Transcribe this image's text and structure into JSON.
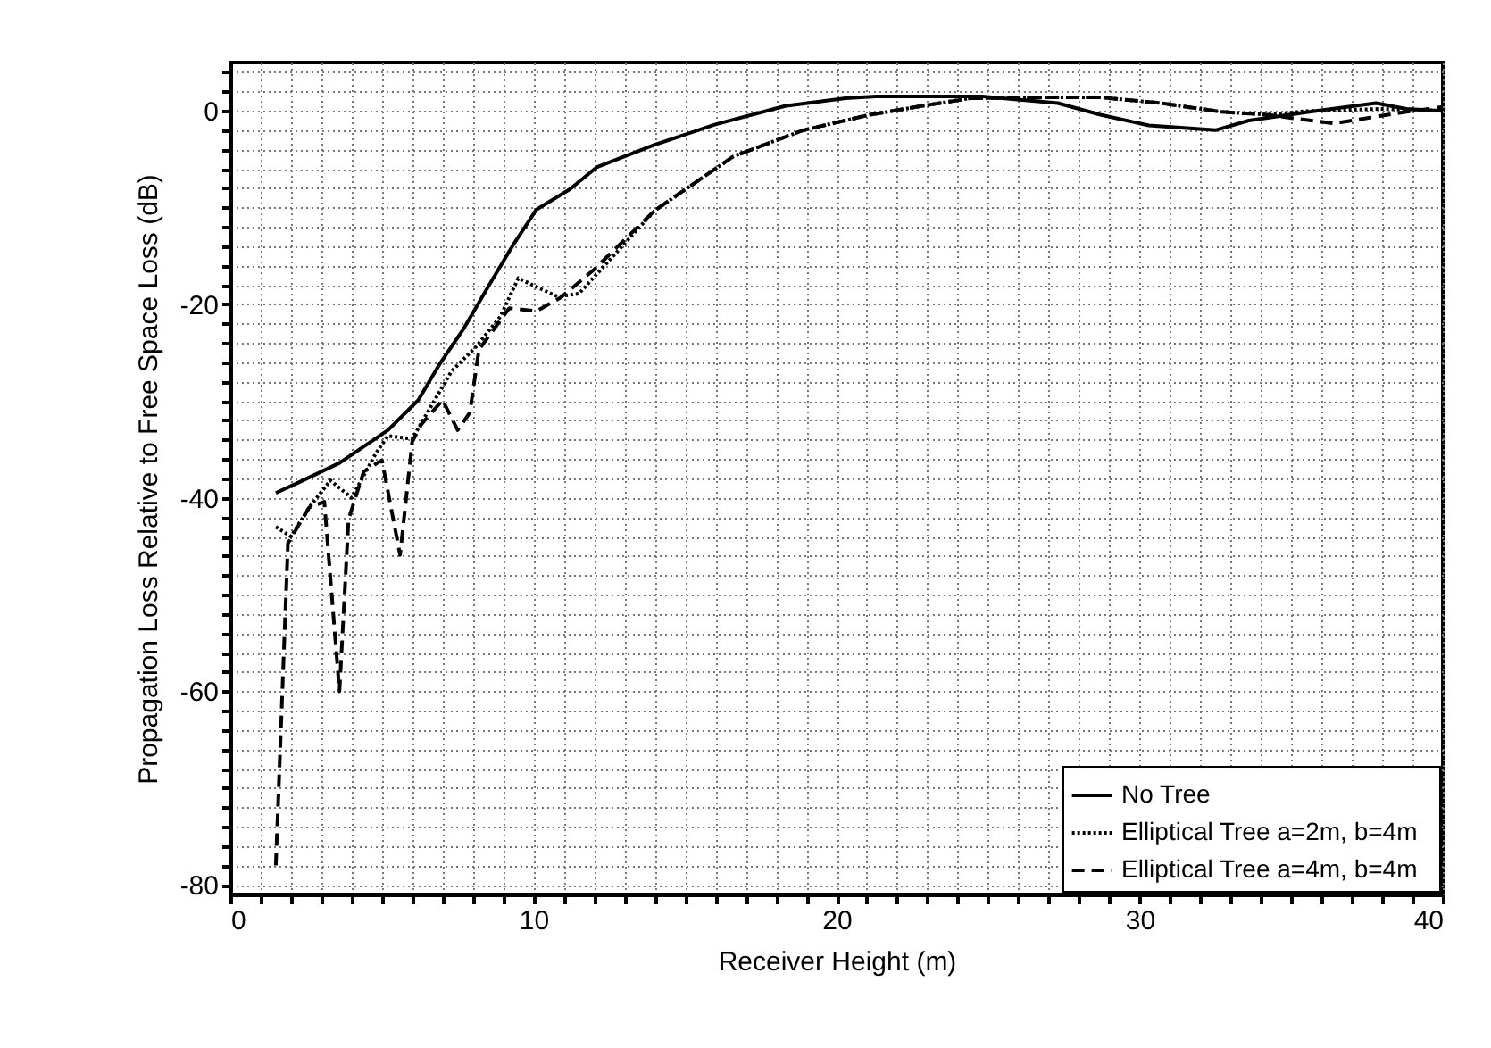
{
  "chart_data": {
    "type": "line",
    "xlabel": "Receiver Height (m)",
    "ylabel": "Propagation Loss Relative to Free Space Loss (dB)",
    "xlim": [
      0,
      40
    ],
    "ylim": [
      -81,
      5
    ],
    "xticks": [
      0,
      {
        "value": 1,
        "label": null
      },
      {
        "value": 2,
        "label": null
      },
      {
        "value": 3,
        "label": null
      },
      {
        "value": 4,
        "label": null
      },
      {
        "value": 5,
        "label": null
      },
      {
        "value": 6,
        "label": null
      },
      {
        "value": 7,
        "label": null
      },
      {
        "value": 8,
        "label": null
      },
      {
        "value": 9,
        "label": null
      },
      10,
      {
        "value": 11,
        "label": null
      },
      {
        "value": 12,
        "label": null
      },
      {
        "value": 13,
        "label": null
      },
      {
        "value": 14,
        "label": null
      },
      {
        "value": 15,
        "label": null
      },
      {
        "value": 16,
        "label": null
      },
      {
        "value": 17,
        "label": null
      },
      {
        "value": 18,
        "label": null
      },
      {
        "value": 19,
        "label": null
      },
      20,
      {
        "value": 21,
        "label": null
      },
      {
        "value": 22,
        "label": null
      },
      {
        "value": 23,
        "label": null
      },
      {
        "value": 24,
        "label": null
      },
      {
        "value": 25,
        "label": null
      },
      {
        "value": 26,
        "label": null
      },
      {
        "value": 27,
        "label": null
      },
      {
        "value": 28,
        "label": null
      },
      {
        "value": 29,
        "label": null
      },
      30,
      {
        "value": 31,
        "label": null
      },
      {
        "value": 32,
        "label": null
      },
      {
        "value": 33,
        "label": null
      },
      {
        "value": 34,
        "label": null
      },
      {
        "value": 35,
        "label": null
      },
      {
        "value": 36,
        "label": null
      },
      {
        "value": 37,
        "label": null
      },
      {
        "value": 38,
        "label": null
      },
      {
        "value": 39,
        "label": null
      },
      40
    ],
    "yticks": [
      -80,
      {
        "value": -78,
        "label": null
      },
      {
        "value": -76,
        "label": null
      },
      {
        "value": -74,
        "label": null
      },
      {
        "value": -72,
        "label": null
      },
      {
        "value": -70,
        "label": null
      },
      {
        "value": -68,
        "label": null
      },
      {
        "value": -66,
        "label": null
      },
      {
        "value": -64,
        "label": null
      },
      {
        "value": -62,
        "label": null
      },
      -60,
      {
        "value": -58,
        "label": null
      },
      {
        "value": -56,
        "label": null
      },
      {
        "value": -54,
        "label": null
      },
      {
        "value": -52,
        "label": null
      },
      {
        "value": -50,
        "label": null
      },
      {
        "value": -48,
        "label": null
      },
      {
        "value": -46,
        "label": null
      },
      {
        "value": -44,
        "label": null
      },
      {
        "value": -42,
        "label": null
      },
      -40,
      {
        "value": -38,
        "label": null
      },
      {
        "value": -36,
        "label": null
      },
      {
        "value": -34,
        "label": null
      },
      {
        "value": -32,
        "label": null
      },
      {
        "value": -30,
        "label": null
      },
      {
        "value": -28,
        "label": null
      },
      {
        "value": -26,
        "label": null
      },
      {
        "value": -24,
        "label": null
      },
      {
        "value": -22,
        "label": null
      },
      -20,
      {
        "value": -18,
        "label": null
      },
      {
        "value": -16,
        "label": null
      },
      {
        "value": -14,
        "label": null
      },
      {
        "value": -12,
        "label": null
      },
      {
        "value": -10,
        "label": null
      },
      {
        "value": -8,
        "label": null
      },
      {
        "value": -6,
        "label": null
      },
      {
        "value": -4,
        "label": null
      },
      {
        "value": -2,
        "label": null
      },
      0,
      {
        "value": 2,
        "label": null
      },
      {
        "value": 4,
        "label": null
      }
    ],
    "grid": true,
    "legend": "bottom right",
    "series": [
      {
        "name": "No Tree",
        "color": "#000000",
        "line_style": "solid",
        "x": [
          1.5,
          2.4,
          3.6,
          5.2,
          6.2,
          6.9,
          7.7,
          8.5,
          9.3,
          10.1,
          11.2,
          12.1,
          14.0,
          16.0,
          18.3,
          20.3,
          21.3,
          24.8,
          27.3,
          28.7,
          30.3,
          32.5,
          33.6,
          35.6,
          37.8,
          38.8,
          40
        ],
        "values": [
          -39.5,
          -38.2,
          -36.4,
          -33.0,
          -29.9,
          -26.2,
          -22.5,
          -18.2,
          -14.0,
          -10.2,
          -8.1,
          -5.8,
          -3.5,
          -1.4,
          0.5,
          1.3,
          1.5,
          1.5,
          0.8,
          -0.4,
          -1.5,
          -2.0,
          -1.0,
          -0.1,
          0.8,
          0.2,
          0
        ]
      },
      {
        "name": "Elliptical Tree  a=2m,  b=4m",
        "color": "#000000",
        "line_style": "dotted",
        "x": [
          1.5,
          2.0,
          2.6,
          3.3,
          4.0,
          4.8,
          5.2,
          6.0,
          6.5,
          7.3,
          8.1,
          8.9,
          9.5,
          10.1,
          10.8,
          11.5,
          12.4,
          14.0,
          16.6,
          18.9,
          21.1,
          22.8,
          24.4,
          27.0,
          28.7,
          30.7,
          32.7,
          34.2,
          35.6,
          37.9,
          40
        ],
        "values": [
          -43,
          -44,
          -41,
          -38.2,
          -40,
          -35.4,
          -33.6,
          -33.9,
          -31.2,
          -26.9,
          -24.4,
          -21.3,
          -17.3,
          -18.2,
          -19.2,
          -18.9,
          -15.8,
          -10.3,
          -4.7,
          -2.0,
          -0.4,
          0.5,
          1.3,
          1.4,
          1.4,
          0.8,
          -0.1,
          -0.4,
          0,
          0.2,
          0
        ]
      },
      {
        "name": "Elliptical Tree  a=4m,  b=4m",
        "color": "#000000",
        "line_style": "dashed",
        "x": [
          1.5,
          1.9,
          2.6,
          3.1,
          3.6,
          3.9,
          4.4,
          5.0,
          5.6,
          6.0,
          6.3,
          7.0,
          7.5,
          7.9,
          8.2,
          9.2,
          10.1,
          10.9,
          12.0,
          14.0,
          16.6,
          18.9,
          21.1,
          22.8,
          24.4,
          27.0,
          28.7,
          30.7,
          32.7,
          34.2,
          36.4,
          38.8,
          40
        ],
        "values": [
          -78,
          -44.7,
          -41,
          -40.4,
          -60,
          -42.2,
          -37.3,
          -36.1,
          -45.9,
          -34.2,
          -32.4,
          -29.9,
          -33.0,
          -31.2,
          -24.7,
          -20.4,
          -20.7,
          -19.3,
          -16.4,
          -10.3,
          -4.7,
          -2.0,
          -0.4,
          0.5,
          1.3,
          1.4,
          1.4,
          0.8,
          -0.1,
          -0.4,
          -1.3,
          -0.1,
          0.4
        ]
      }
    ]
  }
}
